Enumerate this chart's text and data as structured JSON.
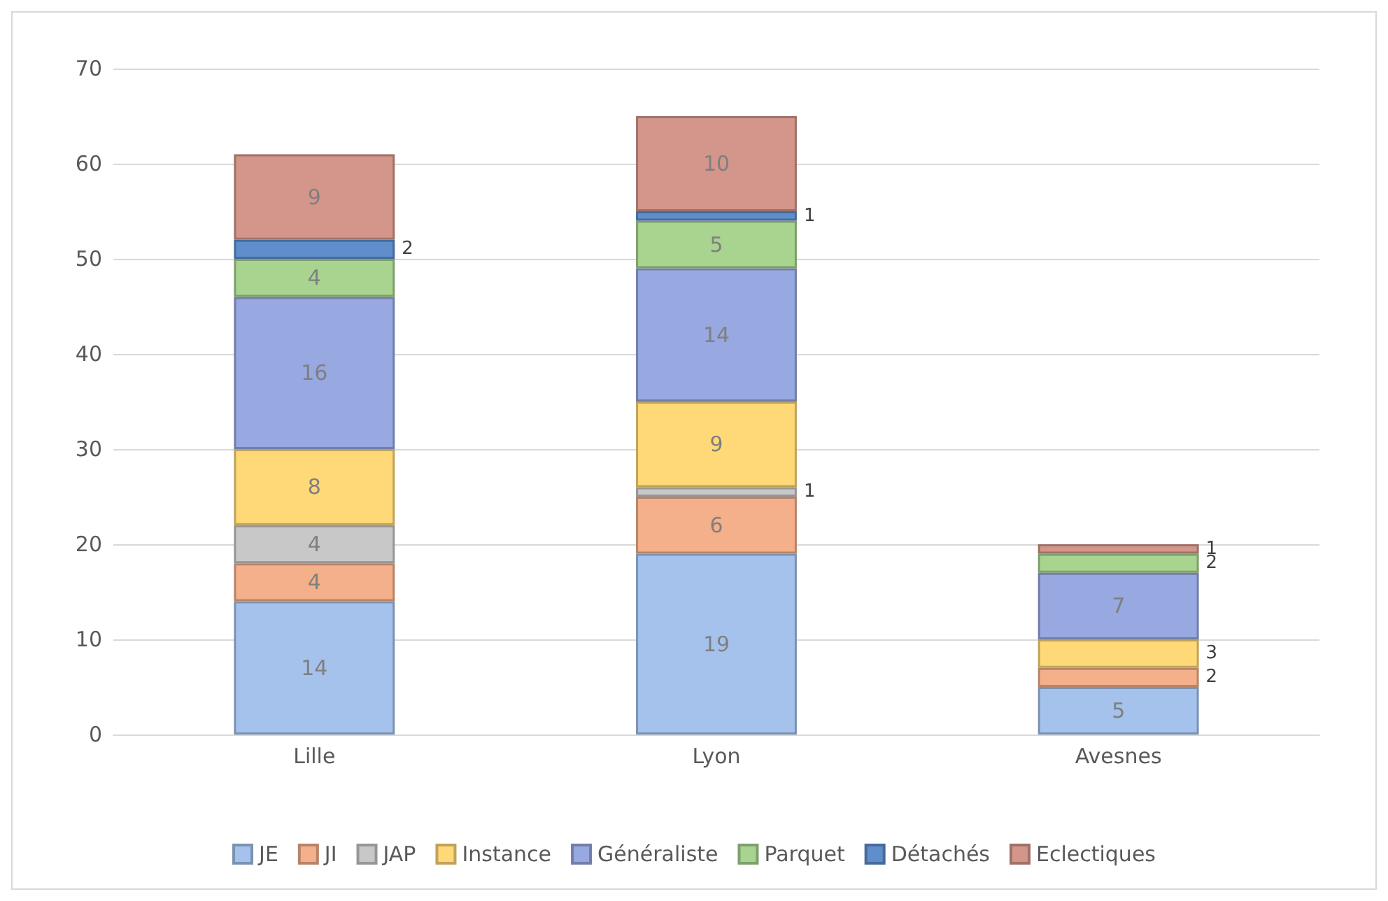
{
  "chart_data": {
    "type": "bar",
    "stacked": true,
    "categories": [
      "Lille",
      "Lyon",
      "Avesnes"
    ],
    "series": [
      {
        "name": "JE",
        "color": "#a4c2ec",
        "values": [
          14,
          19,
          5
        ]
      },
      {
        "name": "JI",
        "color": "#f4b08a",
        "values": [
          4,
          6,
          2
        ]
      },
      {
        "name": "JAP",
        "color": "#c8c8c8",
        "values": [
          4,
          1,
          null
        ]
      },
      {
        "name": "Instance",
        "color": "#ffd978",
        "values": [
          8,
          9,
          3
        ]
      },
      {
        "name": "Généraliste",
        "color": "#98a8e0",
        "values": [
          16,
          14,
          7
        ]
      },
      {
        "name": "Parquet",
        "color": "#a8d490",
        "values": [
          4,
          5,
          2
        ]
      },
      {
        "name": "Détachés",
        "color": "#5e8fcc",
        "values": [
          2,
          1,
          null
        ]
      },
      {
        "name": "Eclectiques",
        "color": "#d4968a",
        "values": [
          9,
          10,
          1
        ]
      }
    ],
    "ylim": [
      0,
      70
    ],
    "yticks": [
      0,
      10,
      20,
      30,
      40,
      50,
      60,
      70
    ],
    "grid": "y",
    "legend": "bottom",
    "data_labels": true
  }
}
